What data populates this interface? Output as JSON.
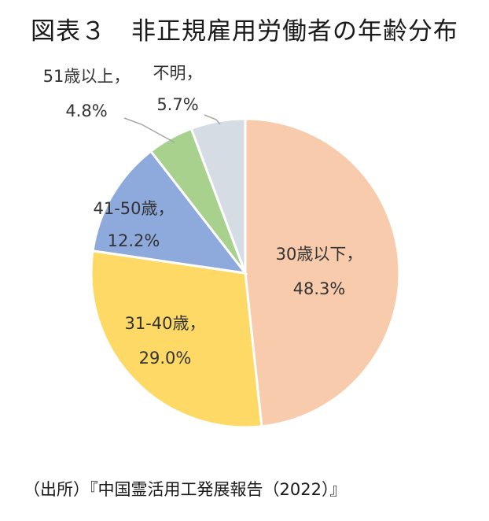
{
  "title": "図表３　非正規雇用労働者の年齢分布",
  "source": "（出所）『中国霊活用工発展報告（2022）』",
  "chart_data": {
    "type": "pie",
    "title": "図表３　非正規雇用労働者の年齢分布",
    "start_angle_deg": 0,
    "direction": "clockwise",
    "slices": [
      {
        "name": "30歳以下",
        "value": 48.3,
        "pct_label": "48.3%",
        "color": "#F8CBAD"
      },
      {
        "name": "31-40歳",
        "value": 29.0,
        "pct_label": "29.0%",
        "color": "#FFD966"
      },
      {
        "name": "41-50歳",
        "value": 12.2,
        "pct_label": "12.2%",
        "color": "#8EA9DB"
      },
      {
        "name": "51歳以上",
        "value": 4.8,
        "pct_label": "4.8%",
        "color": "#A9D18E"
      },
      {
        "name": "不明",
        "value": 5.7,
        "pct_label": "5.7%",
        "color": "#D6DCE4"
      }
    ]
  }
}
